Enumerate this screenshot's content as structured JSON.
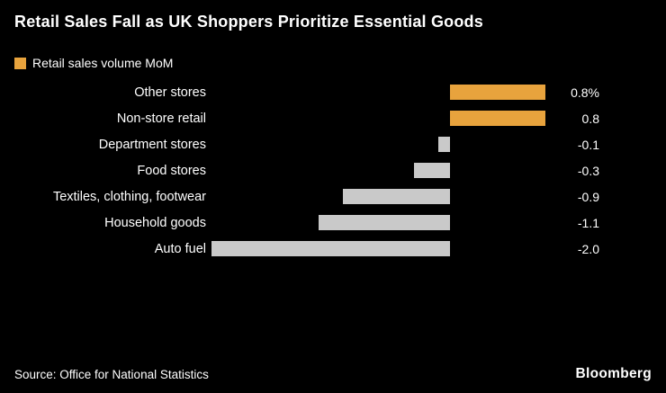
{
  "title": "Retail Sales Fall as UK Shoppers Prioritize Essential Goods",
  "legend": {
    "label": "Retail sales volume MoM"
  },
  "source": "Source: Office for National Statistics",
  "brand": "Bloomberg",
  "colors": {
    "background": "#000000",
    "text": "#ffffff",
    "positive": "#E8A33D",
    "negative": "#C9C9C9"
  },
  "chart_data": {
    "type": "bar",
    "orientation": "horizontal",
    "title": "Retail Sales Fall as UK Shoppers Prioritize Essential Goods",
    "legend_entries": [
      "Retail sales volume MoM"
    ],
    "legend_position": "top-left",
    "grid": false,
    "xlim": [
      -2.0,
      0.8
    ],
    "categories": [
      "Other stores",
      "Non-store retail",
      "Department stores",
      "Food stores",
      "Textiles, clothing, footwear",
      "Household goods",
      "Auto fuel"
    ],
    "values": [
      0.8,
      0.8,
      -0.1,
      -0.3,
      -0.9,
      -1.1,
      -2.0
    ],
    "value_labels": [
      "0.8%",
      "0.8",
      "-0.1",
      "-0.3",
      "-0.9",
      "-1.1",
      "-2.0"
    ],
    "unit": "% MoM"
  }
}
